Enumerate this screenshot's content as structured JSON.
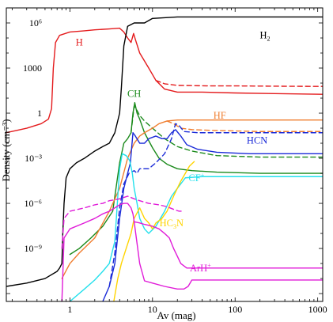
{
  "chart_data": {
    "type": "line",
    "title": "",
    "xlabel": "Av (mag)",
    "ylabel": "Density (cm⁻³)",
    "xscale": "log",
    "yscale": "log",
    "xlim": [
      0.17,
      1150
    ],
    "ylim": [
      3e-13,
      10000000.0
    ],
    "xticks": [
      1,
      10,
      100,
      1000
    ],
    "xtick_labels": [
      "1",
      "10",
      "100",
      "1000"
    ],
    "yticks": [
      1e-09,
      1e-06,
      0.001,
      1,
      1000,
      1000000.0
    ],
    "ytick_labels": [
      "10⁻⁹",
      "10⁻⁶",
      "10⁻³",
      "1",
      "1000",
      "10⁶"
    ],
    "grid": false,
    "legend": "none",
    "labels": [
      {
        "key": "H",
        "text": "H",
        "x": 1.3,
        "y": 50000,
        "color": "#e41a1c"
      },
      {
        "key": "H2",
        "text": "H",
        "sub": "2",
        "x": 230,
        "y": 150000,
        "color": "#000000"
      },
      {
        "key": "CH",
        "text": "CH",
        "x": 6.0,
        "y": 20,
        "color": "#1b8a1b"
      },
      {
        "key": "HF",
        "text": "HF",
        "x": 65,
        "y": 0.7,
        "color": "#f07d2e"
      },
      {
        "key": "HCN",
        "text": "HCN",
        "x": 185,
        "y": 0.015,
        "color": "#1a2ad8"
      },
      {
        "key": "CF+",
        "text": "CF",
        "sup": "+",
        "x": 34,
        "y": 5e-05,
        "color": "#23e0ec"
      },
      {
        "key": "HC3N",
        "text": "HC",
        "sub": "3",
        "tail": "N",
        "x": 17,
        "y": 5e-08,
        "color": "#ffd400"
      },
      {
        "key": "ArH+",
        "text": "ArH",
        "sup": "+",
        "x": 38,
        "y": 5e-11,
        "color": "#e01bd8"
      }
    ],
    "series": [
      {
        "key": "H",
        "color": "#e41a1c",
        "dashed": false,
        "points": [
          [
            0.17,
            0.05
          ],
          [
            0.3,
            0.1
          ],
          [
            0.45,
            0.2
          ],
          [
            0.55,
            0.4
          ],
          [
            0.6,
            2
          ],
          [
            0.63,
            1000
          ],
          [
            0.67,
            50000
          ],
          [
            0.75,
            150000
          ],
          [
            1,
            250000
          ],
          [
            1.5,
            300000
          ],
          [
            2,
            350000
          ],
          [
            3,
            400000
          ],
          [
            4,
            450000
          ],
          [
            4.5,
            250000
          ],
          [
            5,
            100000
          ],
          [
            5.5,
            50000
          ],
          [
            5.9,
            200000
          ],
          [
            6.2,
            80000
          ],
          [
            7,
            10000
          ],
          [
            9,
            1000
          ],
          [
            11,
            150
          ],
          [
            14,
            40
          ],
          [
            20,
            25
          ],
          [
            40,
            25
          ],
          [
            100,
            22
          ],
          [
            300,
            20
          ],
          [
            1150,
            18
          ]
        ]
      },
      {
        "key": "H_dash",
        "color": "#e41a1c",
        "dashed": true,
        "points": [
          [
            11,
            150
          ],
          [
            14,
            90
          ],
          [
            20,
            70
          ],
          [
            50,
            65
          ],
          [
            100,
            65
          ],
          [
            300,
            62
          ],
          [
            1150,
            60
          ]
        ]
      },
      {
        "key": "H2",
        "color": "#000000",
        "dashed": false,
        "points": [
          [
            0.17,
            3e-12
          ],
          [
            0.3,
            5e-12
          ],
          [
            0.5,
            1e-11
          ],
          [
            0.7,
            3e-11
          ],
          [
            0.75,
            5e-11
          ],
          [
            0.8,
            1e-10
          ],
          [
            0.82,
            1e-08
          ],
          [
            0.85,
            1e-06
          ],
          [
            0.9,
            5e-05
          ],
          [
            1,
            0.0002
          ],
          [
            1.2,
            0.0005
          ],
          [
            1.5,
            0.001
          ],
          [
            2,
            0.003
          ],
          [
            2.5,
            0.006
          ],
          [
            3,
            0.01
          ],
          [
            3.5,
            0.05
          ],
          [
            4,
            1
          ],
          [
            4.2,
            50
          ],
          [
            4.5,
            30000
          ],
          [
            5,
            600000
          ],
          [
            6,
            1000000
          ],
          [
            8,
            1000000
          ],
          [
            10,
            2000000
          ],
          [
            20,
            2500000
          ],
          [
            50,
            2500000
          ],
          [
            100,
            2500000
          ],
          [
            1150,
            2500000
          ]
        ]
      },
      {
        "key": "CH",
        "color": "#1b8a1b",
        "dashed": false,
        "points": [
          [
            1,
            4e-10
          ],
          [
            1.3,
            1e-09
          ],
          [
            1.8,
            5e-09
          ],
          [
            2.5,
            3e-08
          ],
          [
            3.3,
            3e-07
          ],
          [
            4,
            0.0005
          ],
          [
            4.5,
            0.01
          ],
          [
            5,
            0.02
          ],
          [
            5.5,
            0.05
          ],
          [
            5.8,
            1
          ],
          [
            6.1,
            5
          ],
          [
            6.5,
            1
          ],
          [
            7,
            0.4
          ],
          [
            8,
            0.05
          ],
          [
            10,
            0.005
          ],
          [
            12,
            0.001
          ],
          [
            15,
            0.0004
          ],
          [
            20,
            0.0002
          ],
          [
            30,
            0.00015
          ],
          [
            60,
            0.00012
          ],
          [
            200,
            0.0001
          ],
          [
            1150,
            0.0001
          ]
        ]
      },
      {
        "key": "CH_dash",
        "color": "#1b8a1b",
        "dashed": true,
        "points": [
          [
            5.5,
            0.05
          ],
          [
            6,
            3
          ],
          [
            6.5,
            1.5
          ],
          [
            7,
            0.7
          ],
          [
            8,
            0.3
          ],
          [
            10,
            0.1
          ],
          [
            14,
            0.02
          ],
          [
            20,
            0.006
          ],
          [
            30,
            0.003
          ],
          [
            60,
            0.0015
          ],
          [
            200,
            0.0012
          ],
          [
            1150,
            0.0012
          ]
        ]
      },
      {
        "key": "HF",
        "color": "#f07d2e",
        "dashed": false,
        "points": [
          [
            0.8,
            1e-11
          ],
          [
            1,
            1e-10
          ],
          [
            1.3,
            5e-10
          ],
          [
            2,
            5e-09
          ],
          [
            3,
            3e-07
          ],
          [
            4,
            1e-05
          ],
          [
            5,
            0.001
          ],
          [
            6,
            0.01
          ],
          [
            7,
            0.03
          ],
          [
            8,
            0.05
          ],
          [
            10,
            0.1
          ],
          [
            12,
            0.2
          ],
          [
            15,
            0.3
          ],
          [
            20,
            0.35
          ],
          [
            40,
            0.35
          ],
          [
            100,
            0.35
          ],
          [
            1150,
            0.35
          ]
        ]
      },
      {
        "key": "HF_dash",
        "color": "#f07d2e",
        "dashed": true,
        "points": [
          [
            15,
            0.3
          ],
          [
            18,
            0.2
          ],
          [
            22,
            0.1
          ],
          [
            30,
            0.08
          ],
          [
            60,
            0.07
          ],
          [
            200,
            0.06
          ],
          [
            1150,
            0.06
          ]
        ]
      },
      {
        "key": "HCN",
        "color": "#1a2ad8",
        "dashed": false,
        "points": [
          [
            2.5,
            3e-13
          ],
          [
            3,
            3e-12
          ],
          [
            3.5,
            1e-10
          ],
          [
            4,
            1e-07
          ],
          [
            4.5,
            1e-05
          ],
          [
            5,
            0.0001
          ],
          [
            5.4,
            0.0005
          ],
          [
            5.8,
            0.05
          ],
          [
            6.2,
            0.03
          ],
          [
            7,
            0.01
          ],
          [
            8,
            0.01
          ],
          [
            9,
            0.02
          ],
          [
            11,
            0.03
          ],
          [
            13,
            0.02
          ],
          [
            15,
            0.02
          ],
          [
            17,
            0.05
          ],
          [
            19,
            0.08
          ],
          [
            22,
            0.03
          ],
          [
            26,
            0.008
          ],
          [
            35,
            0.004
          ],
          [
            60,
            0.0025
          ],
          [
            150,
            0.002
          ],
          [
            400,
            0.002
          ],
          [
            1150,
            0.002
          ]
        ]
      },
      {
        "key": "HCN_dash",
        "color": "#1a2ad8",
        "dashed": true,
        "points": [
          [
            3,
            3e-12
          ],
          [
            3.5,
            5e-10
          ],
          [
            4,
            5e-07
          ],
          [
            4.5,
            2e-05
          ],
          [
            5.2,
            0.0001
          ],
          [
            6,
            0.00015
          ],
          [
            6.5,
            0.0001
          ],
          [
            7,
            0.0002
          ],
          [
            9,
            0.0002
          ],
          [
            11,
            0.0005
          ],
          [
            14,
            0.002
          ],
          [
            17,
            0.02
          ],
          [
            19,
            0.2
          ],
          [
            21,
            0.15
          ],
          [
            24,
            0.06
          ],
          [
            35,
            0.05
          ],
          [
            100,
            0.05
          ],
          [
            1150,
            0.05
          ]
        ]
      },
      {
        "key": "CF+",
        "color": "#23e0ec",
        "dashed": false,
        "points": [
          [
            1,
            3e-13
          ],
          [
            1.5,
            2e-12
          ],
          [
            2,
            8e-12
          ],
          [
            2.5,
            3e-11
          ],
          [
            3,
            1e-10
          ],
          [
            3.5,
            3e-09
          ],
          [
            4,
            0.0002
          ],
          [
            4.3,
            0.002
          ],
          [
            4.8,
            0.0015
          ],
          [
            5.3,
            0.0007
          ],
          [
            5.7,
            0.0001
          ],
          [
            6,
            1e-05
          ],
          [
            6.5,
            1e-06
          ],
          [
            7,
            1e-07
          ],
          [
            8,
            2e-08
          ],
          [
            9,
            1e-08
          ],
          [
            11,
            3e-08
          ],
          [
            14,
            3e-07
          ],
          [
            17,
            3e-06
          ],
          [
            20,
            1e-05
          ],
          [
            25,
            5e-05
          ],
          [
            40,
            6e-05
          ],
          [
            100,
            6e-05
          ],
          [
            1150,
            6e-05
          ]
        ]
      },
      {
        "key": "HC3N",
        "color": "#ffd400",
        "dashed": false,
        "points": [
          [
            3.4,
            3e-13
          ],
          [
            3.8,
            1e-11
          ],
          [
            4.2,
            1e-10
          ],
          [
            4.8,
            1e-09
          ],
          [
            5.5,
            1e-08
          ],
          [
            6,
            1e-07
          ],
          [
            7,
            5e-07
          ],
          [
            8,
            1e-07
          ],
          [
            9,
            5e-08
          ],
          [
            10,
            2e-08
          ],
          [
            11,
            5e-08
          ],
          [
            13,
            1e-07
          ],
          [
            15,
            3e-07
          ],
          [
            18,
            3e-06
          ],
          [
            22,
            3e-05
          ],
          [
            25,
            0.0001
          ],
          [
            28,
            0.0003
          ],
          [
            32,
            0.0006
          ]
        ]
      },
      {
        "key": "ArH+",
        "color": "#e01bd8",
        "dashed": false,
        "points": [
          [
            0.8,
            3e-13
          ],
          [
            0.85,
            5e-09
          ],
          [
            1,
            2e-08
          ],
          [
            1.5,
            5e-08
          ],
          [
            2,
            1e-07
          ],
          [
            2.5,
            2e-07
          ],
          [
            3,
            3e-07
          ],
          [
            3.5,
            5e-07
          ],
          [
            4,
            8e-07
          ],
          [
            4.5,
            1e-06
          ],
          [
            5,
            1e-06
          ],
          [
            5.5,
            5e-07
          ],
          [
            5.8,
            2e-07
          ],
          [
            6,
            6e-08
          ],
          [
            7,
            5e-08
          ],
          [
            8,
            4e-08
          ],
          [
            10,
            3e-08
          ],
          [
            12,
            2e-08
          ],
          [
            14,
            1e-08
          ],
          [
            16,
            5e-09
          ],
          [
            18,
            1e-09
          ],
          [
            20,
            3e-10
          ],
          [
            22,
            1e-10
          ],
          [
            26,
            5e-11
          ],
          [
            32,
            5e-11
          ],
          [
            60,
            5e-11
          ],
          [
            200,
            5e-11
          ],
          [
            1150,
            5e-11
          ]
        ]
      },
      {
        "key": "ArH+_b",
        "color": "#e01bd8",
        "dashed": false,
        "points": [
          [
            6,
            6e-08
          ],
          [
            7,
            1e-10
          ],
          [
            8,
            7e-12
          ],
          [
            10,
            5e-12
          ],
          [
            14,
            3e-12
          ],
          [
            20,
            2e-12
          ],
          [
            24,
            2e-12
          ],
          [
            27,
            3e-12
          ],
          [
            30,
            8e-12
          ],
          [
            40,
            8e-12
          ],
          [
            100,
            8e-12
          ],
          [
            1150,
            8e-12
          ]
        ]
      },
      {
        "key": "ArH+_dash",
        "color": "#e01bd8",
        "dashed": true,
        "points": [
          [
            0.8,
            1e-09
          ],
          [
            0.85,
            1e-07
          ],
          [
            1,
            3e-07
          ],
          [
            1.5,
            5e-07
          ],
          [
            2,
            8e-07
          ],
          [
            2.5,
            1e-06
          ],
          [
            3,
            1.5e-06
          ],
          [
            4,
            2e-06
          ],
          [
            5,
            3e-06
          ],
          [
            6,
            2e-06
          ],
          [
            7,
            1.5e-06
          ],
          [
            9,
            1e-06
          ],
          [
            12,
            8e-07
          ],
          [
            15,
            6e-07
          ],
          [
            18,
            4e-07
          ],
          [
            21,
            3e-07
          ],
          [
            24,
            3e-07
          ]
        ]
      }
    ]
  }
}
